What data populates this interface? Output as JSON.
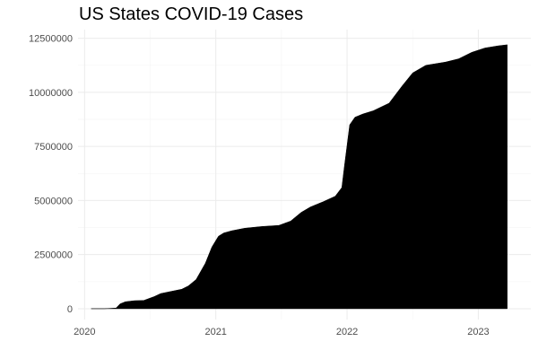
{
  "chart_data": {
    "type": "area",
    "title": "US States COVID-19 Cases",
    "xlabel": "",
    "ylabel": "",
    "xlim": [
      2019.95,
      2023.4
    ],
    "ylim": [
      -500000,
      12900000
    ],
    "x_ticks": [
      2020,
      2021,
      2022,
      2023
    ],
    "x_tick_labels": [
      "2020",
      "2021",
      "2022",
      "2023"
    ],
    "y_ticks": [
      0,
      2500000,
      5000000,
      7500000,
      10000000,
      12500000
    ],
    "y_tick_labels": [
      "0",
      "2500000",
      "5000000",
      "7500000",
      "10000000",
      "12500000"
    ],
    "grid": true,
    "legend": "none",
    "fill_color": "#000000",
    "grid_color": "#ebebeb",
    "series": [
      {
        "x": [
          2020.05,
          2020.15,
          2020.24,
          2020.27,
          2020.31,
          2020.38,
          2020.45,
          2020.53,
          2020.58,
          2020.66,
          2020.74,
          2020.79,
          2020.85,
          2020.92,
          2020.97,
          2021.02,
          2021.06,
          2021.12,
          2021.22,
          2021.35,
          2021.48,
          2021.57,
          2021.65,
          2021.72,
          2021.82,
          2021.91,
          2021.96,
          2021.98,
          2022.02,
          2022.06,
          2022.12,
          2022.2,
          2022.32,
          2022.42,
          2022.5,
          2022.6,
          2022.75,
          2022.85,
          2022.95,
          2023.05,
          2023.15,
          2023.22
        ],
        "values": [
          0,
          0,
          30000,
          220000,
          320000,
          370000,
          380000,
          560000,
          700000,
          800000,
          900000,
          1050000,
          1350000,
          2100000,
          2850000,
          3350000,
          3500000,
          3600000,
          3720000,
          3800000,
          3850000,
          4050000,
          4450000,
          4700000,
          4950000,
          5200000,
          5600000,
          6600000,
          8500000,
          8850000,
          9000000,
          9150000,
          9500000,
          10300000,
          10900000,
          11250000,
          11400000,
          11550000,
          11850000,
          12050000,
          12150000,
          12200000
        ]
      }
    ]
  }
}
